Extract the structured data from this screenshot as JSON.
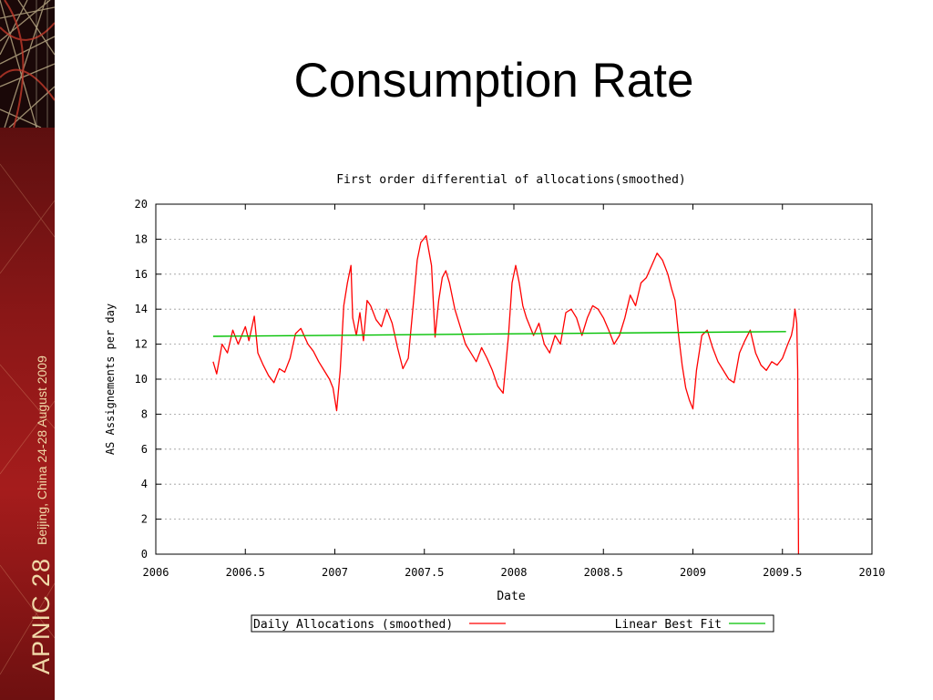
{
  "slide": {
    "title": "Consumption Rate",
    "sidebar": {
      "brand": "APNIC 28",
      "location": "Beijing, China  24-28 August 2009"
    }
  },
  "chart_data": {
    "type": "line",
    "title": "First order differential of allocations(smoothed)",
    "xlabel": "Date",
    "ylabel": "AS Assignements per day",
    "xlim": [
      2006,
      2010
    ],
    "ylim": [
      0,
      20
    ],
    "xticks": [
      2006,
      2006.5,
      2007,
      2007.5,
      2008,
      2008.5,
      2009,
      2009.5,
      2010
    ],
    "yticks": [
      0,
      2,
      4,
      6,
      8,
      10,
      12,
      14,
      16,
      18,
      20
    ],
    "grid": true,
    "legend_position": "bottom",
    "series": [
      {
        "name": "Daily Allocations (smoothed)",
        "color": "#ff0000",
        "x": [
          2006.32,
          2006.34,
          2006.37,
          2006.4,
          2006.43,
          2006.46,
          2006.5,
          2006.52,
          2006.55,
          2006.57,
          2006.6,
          2006.63,
          2006.66,
          2006.69,
          2006.72,
          2006.75,
          2006.78,
          2006.81,
          2006.85,
          2006.88,
          2006.91,
          2006.94,
          2006.97,
          2006.99,
          2007.01,
          2007.03,
          2007.05,
          2007.07,
          2007.09,
          2007.1,
          2007.12,
          2007.14,
          2007.16,
          2007.18,
          2007.2,
          2007.23,
          2007.26,
          2007.29,
          2007.32,
          2007.35,
          2007.38,
          2007.41,
          2007.44,
          2007.46,
          2007.48,
          2007.51,
          2007.54,
          2007.56,
          2007.58,
          2007.6,
          2007.62,
          2007.64,
          2007.67,
          2007.7,
          2007.73,
          2007.76,
          2007.79,
          2007.82,
          2007.85,
          2007.88,
          2007.91,
          2007.94,
          2007.97,
          2007.99,
          2008.01,
          2008.03,
          2008.05,
          2008.07,
          2008.09,
          2008.11,
          2008.14,
          2008.17,
          2008.2,
          2008.23,
          2008.26,
          2008.29,
          2008.32,
          2008.35,
          2008.38,
          2008.41,
          2008.44,
          2008.47,
          2008.5,
          2008.53,
          2008.56,
          2008.59,
          2008.62,
          2008.65,
          2008.68,
          2008.71,
          2008.74,
          2008.77,
          2008.8,
          2008.83,
          2008.86,
          2008.88,
          2008.9,
          2008.92,
          2008.94,
          2008.96,
          2008.98,
          2009.0,
          2009.02,
          2009.05,
          2009.08,
          2009.11,
          2009.14,
          2009.17,
          2009.2,
          2009.23,
          2009.26,
          2009.29,
          2009.32,
          2009.35,
          2009.38,
          2009.41,
          2009.44,
          2009.47,
          2009.5,
          2009.53,
          2009.55,
          2009.56,
          2009.57,
          2009.58,
          2009.585,
          2009.59
        ],
        "y": [
          11.0,
          10.3,
          12.0,
          11.5,
          12.8,
          12.0,
          13.0,
          12.2,
          13.6,
          11.5,
          10.8,
          10.2,
          9.8,
          10.6,
          10.4,
          11.2,
          12.6,
          12.9,
          12.0,
          11.6,
          11.0,
          10.5,
          10.0,
          9.5,
          8.2,
          10.5,
          14.2,
          15.5,
          16.5,
          13.5,
          12.5,
          13.8,
          12.2,
          14.5,
          14.2,
          13.4,
          13.0,
          14.0,
          13.2,
          11.8,
          10.6,
          11.2,
          14.5,
          16.8,
          17.8,
          18.2,
          16.5,
          12.4,
          14.5,
          15.8,
          16.2,
          15.5,
          14.0,
          13.0,
          12.0,
          11.5,
          11.0,
          11.8,
          11.2,
          10.5,
          9.6,
          9.2,
          12.5,
          15.5,
          16.5,
          15.5,
          14.2,
          13.5,
          13.0,
          12.5,
          13.2,
          12.0,
          11.5,
          12.5,
          12.0,
          13.8,
          14.0,
          13.5,
          12.5,
          13.5,
          14.2,
          14.0,
          13.5,
          12.8,
          12.0,
          12.5,
          13.5,
          14.8,
          14.2,
          15.5,
          15.8,
          16.5,
          17.2,
          16.8,
          16.0,
          15.2,
          14.5,
          12.5,
          10.8,
          9.5,
          8.8,
          8.3,
          10.5,
          12.5,
          12.8,
          11.8,
          11.0,
          10.5,
          10.0,
          9.8,
          11.5,
          12.2,
          12.8,
          11.5,
          10.8,
          10.5,
          11.0,
          10.8,
          11.2,
          12.0,
          12.5,
          13.0,
          14.0,
          13.2,
          10.5,
          0.0
        ]
      },
      {
        "name": "Linear Best Fit",
        "color": "#00c000",
        "x": [
          2006.32,
          2009.52
        ],
        "y": [
          12.45,
          12.72
        ]
      }
    ]
  }
}
